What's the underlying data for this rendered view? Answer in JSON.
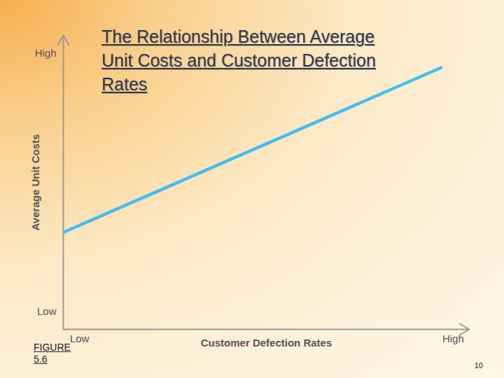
{
  "chart_data": {
    "type": "line",
    "title": "The Relationship Between Average Unit Costs and Customer Defection Rates",
    "x_label": "Customer Defection Rates",
    "y_label": "Average Unit Costs",
    "x": [
      0,
      93
    ],
    "values": [
      33,
      89
    ],
    "color": "#45bdf0",
    "xlim": [
      0,
      100
    ],
    "ylim": [
      0,
      100
    ],
    "xticks": [
      {
        "value": 4,
        "label": "Low"
      },
      {
        "value": 96,
        "label": "High"
      }
    ],
    "yticks": [
      {
        "value": 6,
        "label": "Low"
      },
      {
        "value": 94,
        "label": "High"
      }
    ],
    "grid": false,
    "annotations": [
      "FIGURE 5.6",
      "10"
    ]
  }
}
